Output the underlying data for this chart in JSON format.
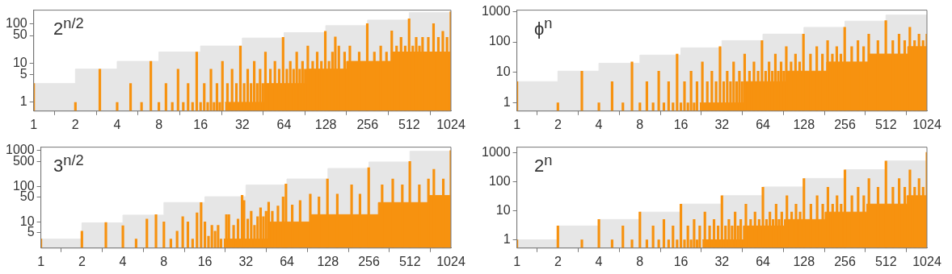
{
  "chart_data": [
    {
      "type": "bar",
      "title": "2$^{n/2}$",
      "log": "xy",
      "xlim": [
        1,
        1024
      ],
      "xticks": [
        1,
        2,
        4,
        8,
        16,
        32,
        64,
        128,
        256,
        512,
        1024
      ],
      "ylim": [
        0.6,
        220
      ],
      "yticks": [
        1,
        5,
        10,
        50,
        100
      ],
      "series": [
        {
          "type": "area",
          "color": "#e6e6e6",
          "x": [
            1,
            2,
            2,
            4,
            4,
            8,
            8,
            16,
            16,
            32,
            32,
            64,
            64,
            128,
            128,
            256,
            256,
            512,
            512,
            1024
          ],
          "values": [
            3,
            3,
            7,
            7,
            11,
            11,
            19,
            19,
            27,
            27,
            43,
            43,
            59,
            59,
            89,
            89,
            123,
            123,
            190,
            190
          ]
        },
        {
          "type": "area",
          "color": "#f7920f",
          "x": [
            24,
            46,
            46,
            93,
            93,
            181,
            181,
            380,
            380,
            1024
          ],
          "values": [
            1,
            1,
            3,
            3,
            7,
            7,
            11,
            11,
            19,
            19
          ]
        },
        {
          "color": "#f7920f",
          "x": [
            1,
            2,
            3,
            4,
            5,
            6,
            7,
            8,
            9,
            10,
            11,
            12,
            13,
            14,
            15,
            16,
            17,
            18,
            19,
            20,
            21,
            22,
            23,
            25,
            27,
            29,
            31,
            33,
            35,
            37,
            39,
            41,
            43,
            45,
            47,
            51,
            55,
            59,
            63,
            67,
            71,
            75,
            79,
            83,
            87,
            91,
            95,
            103,
            111,
            119,
            127,
            135,
            143,
            150,
            159,
            175,
            191,
            223,
            255,
            287,
            319,
            351,
            383,
            415,
            447,
            479,
            511,
            543,
            575,
            607,
            639,
            703,
            767,
            831,
            895,
            959,
            1023
          ],
          "values": [
            3,
            1,
            7,
            1,
            3,
            1,
            11,
            1,
            3,
            1,
            7,
            1,
            3,
            1,
            19,
            1,
            3,
            1,
            7,
            1,
            3,
            1,
            11,
            3,
            7,
            3,
            27,
            3,
            7,
            3,
            11,
            3,
            7,
            3,
            19,
            7,
            11,
            7,
            45,
            7,
            11,
            7,
            19,
            7,
            11,
            7,
            27,
            11,
            19,
            11,
            64,
            11,
            19,
            46,
            27,
            19,
            27,
            19,
            100,
            19,
            27,
            19,
            65,
            27,
            45,
            27,
            133,
            27,
            45,
            27,
            45,
            45,
            100,
            45,
            64,
            45,
            200
          ]
        }
      ]
    },
    {
      "type": "bar",
      "title": "ϕ$^{n}$",
      "log": "xy",
      "xlim": [
        1,
        1024
      ],
      "xticks": [
        1,
        2,
        4,
        8,
        16,
        32,
        64,
        128,
        256,
        512,
        1024
      ],
      "ylim": [
        0.54,
        1100
      ],
      "yticks": [
        1,
        10,
        100,
        1000
      ],
      "series": [
        {
          "type": "area",
          "color": "#e6e6e6",
          "x": [
            1,
            2,
            2,
            4,
            4,
            8,
            8,
            16,
            16,
            32,
            32,
            64,
            64,
            128,
            128,
            256,
            256,
            512,
            512,
            1024
          ],
          "values": [
            5,
            5,
            11,
            11,
            20,
            20,
            37,
            37,
            64,
            64,
            110,
            110,
            180,
            180,
            300,
            300,
            480,
            480,
            760,
            760
          ]
        },
        {
          "type": "area",
          "color": "#f7920f",
          "x": [
            22,
            48,
            48,
            94,
            94,
            188,
            188,
            380,
            380,
            740,
            740,
            1024
          ],
          "values": [
            1,
            1,
            5,
            5,
            11,
            11,
            22,
            22,
            40,
            40,
            70,
            70
          ]
        },
        {
          "color": "#f7920f",
          "x": [
            1,
            2,
            3,
            4,
            5,
            6,
            7,
            8,
            9,
            10,
            11,
            12,
            13,
            14,
            15,
            16,
            17,
            18,
            19,
            20,
            21,
            23,
            25,
            27,
            29,
            31,
            33,
            35,
            37,
            39,
            41,
            43,
            45,
            47,
            51,
            55,
            59,
            63,
            67,
            71,
            75,
            79,
            83,
            87,
            91,
            95,
            103,
            111,
            119,
            127,
            143,
            159,
            175,
            191,
            207,
            223,
            239,
            255,
            287,
            319,
            351,
            383,
            447,
            511,
            575,
            639,
            703,
            767,
            831,
            895,
            959,
            1023
          ],
          "values": [
            5,
            1,
            11,
            1,
            5,
            1,
            22,
            1,
            5,
            1,
            11,
            1,
            5,
            1,
            40,
            1,
            5,
            1,
            11,
            1,
            5,
            22,
            5,
            11,
            5,
            70,
            5,
            11,
            5,
            22,
            5,
            11,
            5,
            40,
            11,
            22,
            11,
            110,
            11,
            22,
            11,
            40,
            11,
            22,
            11,
            70,
            22,
            40,
            22,
            180,
            40,
            70,
            40,
            110,
            40,
            70,
            40,
            300,
            70,
            110,
            70,
            180,
            110,
            500,
            110,
            180,
            110,
            300,
            110,
            180,
            110,
            180
          ]
        }
      ]
    },
    {
      "type": "bar",
      "title": "3$^{n/2}$",
      "log": "xy",
      "xlim": [
        1,
        1024
      ],
      "xticks": [
        1,
        2,
        4,
        8,
        16,
        32,
        64,
        128,
        256,
        512,
        1024
      ],
      "ylim": [
        1.85,
        1250
      ],
      "yticks": [
        5,
        10,
        50,
        100,
        500,
        1000
      ],
      "series": [
        {
          "type": "area",
          "color": "#e6e6e6",
          "x": [
            1,
            2,
            2,
            4,
            4,
            8,
            8,
            16,
            16,
            32,
            32,
            64,
            64,
            128,
            128,
            256,
            256,
            512,
            512,
            1024
          ],
          "values": [
            3.3,
            3.3,
            9.4,
            9.4,
            15.5,
            15.5,
            35,
            35,
            51,
            51,
            108,
            108,
            160,
            160,
            316,
            316,
            480,
            480,
            960,
            960
          ]
        },
        {
          "type": "area",
          "color": "#f7920f",
          "x": [
            22,
            48,
            48,
            95,
            95,
            300,
            300,
            700,
            700,
            1024
          ],
          "values": [
            3.3,
            3.3,
            10,
            10,
            16,
            16,
            35,
            35,
            55,
            55
          ]
        },
        {
          "color": "#f7920f",
          "x": [
            1,
            2,
            3,
            4,
            5,
            6,
            7,
            8,
            9,
            10,
            11,
            12,
            13,
            14,
            15,
            16,
            17,
            18,
            19,
            20,
            21,
            23,
            24,
            26,
            28,
            30,
            31,
            33,
            35,
            37,
            39,
            41,
            43,
            45,
            47,
            50,
            55,
            60,
            63,
            70,
            80,
            95,
            110,
            127,
            150,
            191,
            220,
            255,
            320,
            383,
            450,
            511,
            600,
            700,
            767,
            900,
            1023
          ],
          "values": [
            3.3,
            5.5,
            9.6,
            7.8,
            3.3,
            12,
            16,
            10,
            3.3,
            5.5,
            14,
            10,
            3.3,
            18,
            35,
            10,
            4,
            8,
            5.5,
            8,
            3.3,
            16,
            16,
            8,
            12,
            56,
            40,
            12,
            20,
            8,
            14,
            25,
            14,
            20,
            36,
            20,
            28,
            50,
            115,
            30,
            40,
            60,
            50,
            160,
            60,
            110,
            60,
            330,
            110,
            160,
            110,
            500,
            110,
            160,
            300,
            160,
            1000
          ]
        }
      ]
    },
    {
      "type": "bar",
      "title": "2$^{n}$",
      "log": "xy",
      "xlim": [
        1,
        1024
      ],
      "xticks": [
        1,
        2,
        4,
        8,
        16,
        32,
        64,
        128,
        256,
        512,
        1024
      ],
      "ylim": [
        0.52,
        1550
      ],
      "yticks": [
        1,
        10,
        100,
        1000
      ],
      "series": [
        {
          "type": "area",
          "color": "#e6e6e6",
          "x": [
            1,
            2,
            2,
            4,
            4,
            8,
            8,
            16,
            16,
            32,
            32,
            64,
            64,
            128,
            128,
            256,
            256,
            512,
            512,
            1024
          ],
          "values": [
            1,
            1,
            3,
            3,
            5,
            5,
            9,
            9,
            17,
            17,
            33,
            33,
            66,
            66,
            130,
            130,
            260,
            260,
            520,
            520
          ]
        },
        {
          "type": "area",
          "color": "#f7920f",
          "x": [
            23,
            46,
            46,
            92,
            92,
            183,
            183,
            370,
            370,
            730,
            730,
            1024
          ],
          "values": [
            1,
            1,
            3,
            3,
            5,
            5,
            9,
            9,
            17,
            17,
            33,
            33
          ]
        },
        {
          "color": "#f7920f",
          "x": [
            1,
            2,
            3,
            4,
            5,
            6,
            7,
            8,
            9,
            10,
            11,
            12,
            13,
            14,
            15,
            16,
            17,
            18,
            19,
            20,
            21,
            22,
            24,
            26,
            28,
            30,
            32,
            34,
            36,
            38,
            40,
            42,
            44,
            48,
            52,
            56,
            60,
            64,
            68,
            72,
            76,
            80,
            84,
            88,
            96,
            104,
            112,
            120,
            128,
            144,
            160,
            176,
            192,
            208,
            224,
            240,
            256,
            288,
            320,
            352,
            384,
            448,
            512,
            576,
            640,
            704,
            768,
            832,
            896,
            960,
            1024
          ],
          "values": [
            1,
            3,
            1,
            5,
            1,
            3,
            1,
            9,
            1,
            3,
            1,
            5,
            1,
            3,
            1,
            17,
            1,
            3,
            1,
            5,
            1,
            3,
            9,
            3,
            5,
            3,
            33,
            3,
            5,
            3,
            9,
            3,
            5,
            17,
            5,
            9,
            5,
            65,
            5,
            9,
            5,
            17,
            5,
            9,
            33,
            9,
            17,
            9,
            129,
            17,
            33,
            17,
            65,
            17,
            33,
            17,
            257,
            33,
            65,
            33,
            129,
            65,
            513,
            65,
            129,
            65,
            257,
            65,
            129,
            65,
            1025
          ]
        }
      ]
    }
  ]
}
